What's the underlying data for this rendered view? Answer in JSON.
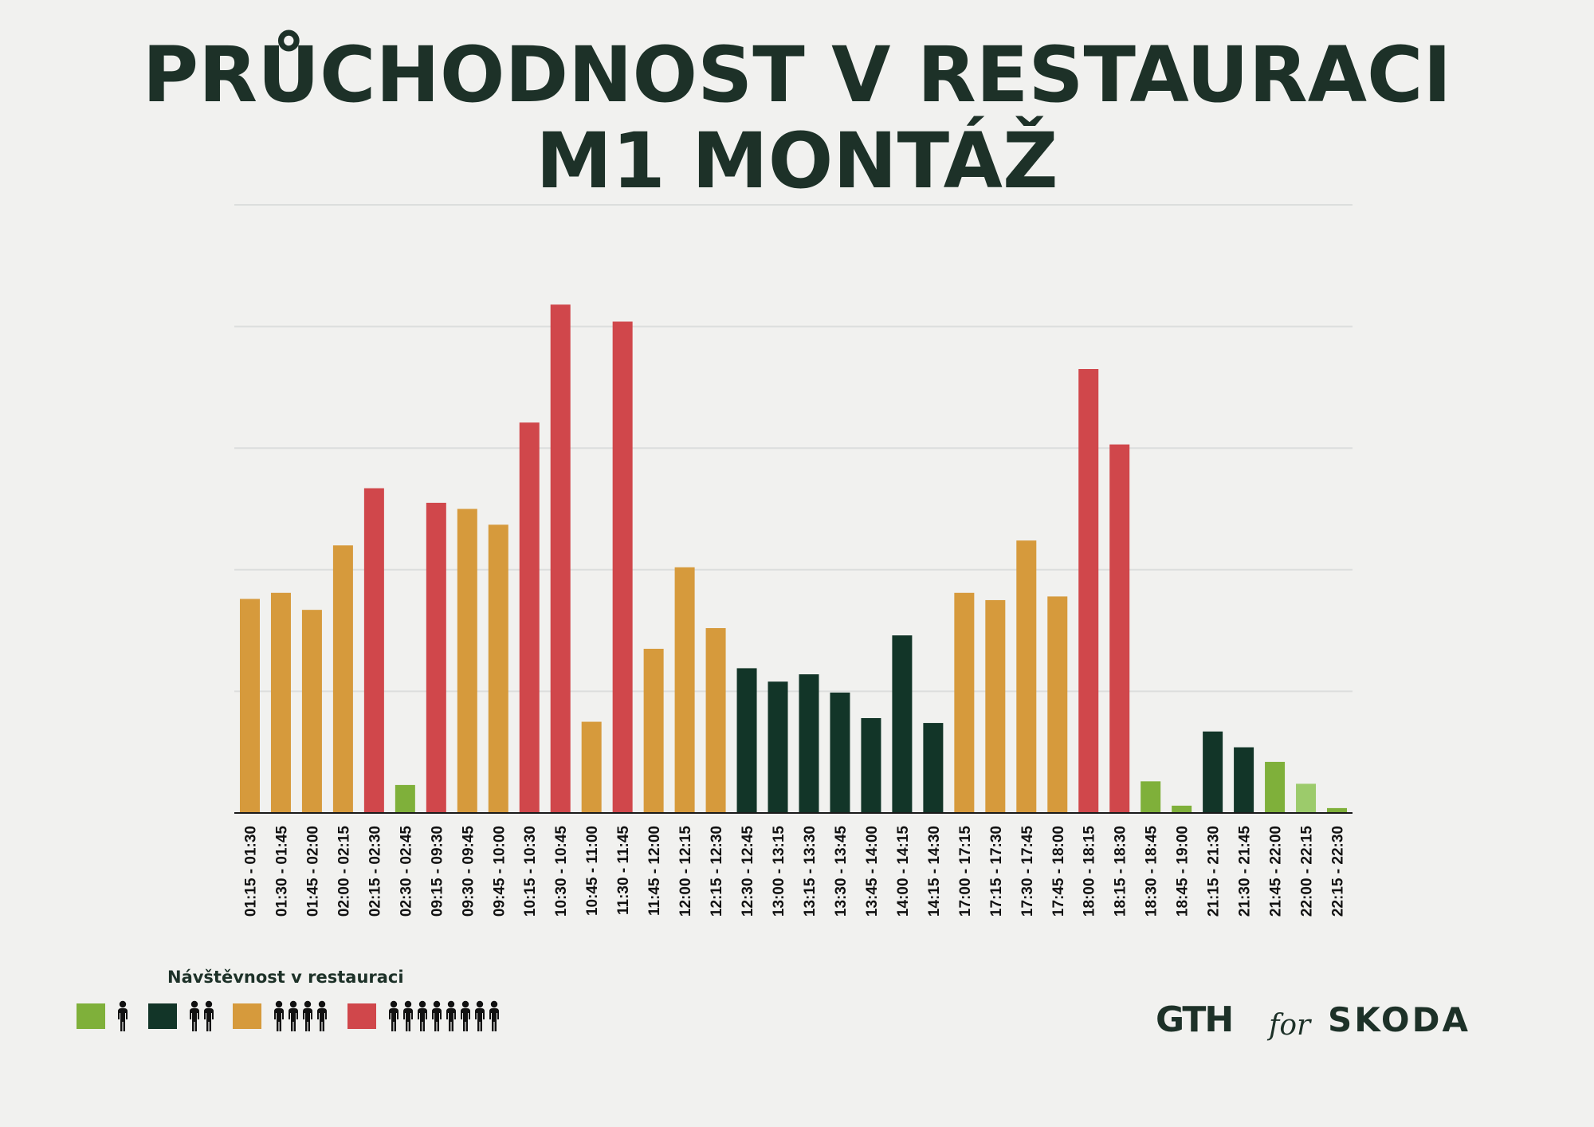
{
  "title": {
    "line1": "PRŮCHODNOST V RESTAURACI",
    "line2": "M1 MONTÁŽ"
  },
  "colors": {
    "background": "#f1f1ef",
    "text": "#1d3128",
    "level1": "#7fb03a",
    "level1_light": "#9ccb6b",
    "level2": "#123528",
    "level3": "#d69a3c",
    "level4": "#d0474b",
    "grid": "#dcdedd",
    "axis": "#1a1a1a"
  },
  "legend": {
    "title": "Návštěvnost v restauraci",
    "items": [
      {
        "level": 1,
        "color": "#7fb03a",
        "people": 1
      },
      {
        "level": 2,
        "color": "#123528",
        "people": 2
      },
      {
        "level": 3,
        "color": "#d69a3c",
        "people": 4
      },
      {
        "level": 4,
        "color": "#d0474b",
        "people": 8
      }
    ]
  },
  "logos": {
    "left": "GTH",
    "middle": "for",
    "right": "SKODA"
  },
  "chart_data": {
    "type": "bar",
    "title": "PRŮCHODNOST V RESTAURACI M1 MONTÁŽ",
    "xlabel": "",
    "ylabel": "",
    "ylim": [
      0,
      5
    ],
    "yticks_labeled": false,
    "grid": true,
    "categories": [
      "01:15 - 01:30",
      "01:30 - 01:45",
      "01:45 - 02:00",
      "02:00 - 02:15",
      "02:15 - 02:30",
      "02:30 - 02:45",
      "09:15 - 09:30",
      "09:30 - 09:45",
      "09:45 - 10:00",
      "10:15 - 10:30",
      "10:30 - 10:45",
      "10:45 - 11:00",
      "11:30 - 11:45",
      "11:45 - 12:00",
      "12:00 - 12:15",
      "12:15 - 12:30",
      "12:30 - 12:45",
      "13:00 - 13:15",
      "13:15 - 13:30",
      "13:30 - 13:45",
      "13:45 - 14:00",
      "14:00 - 14:15",
      "14:15 - 14:30",
      "17:00 - 17:15",
      "17:15 - 17:30",
      "17:30 - 17:45",
      "17:45 - 18:00",
      "18:00 - 18:15",
      "18:15 - 18:30",
      "18:30 - 18:45",
      "18:45 - 19:00",
      "21:15 - 21:30",
      "21:30 - 21:45",
      "21:45 - 22:00",
      "22:00 - 22:15",
      "22:15 - 22:30"
    ],
    "values": [
      1.76,
      1.81,
      1.67,
      2.2,
      2.67,
      0.23,
      2.55,
      2.5,
      2.37,
      3.21,
      4.18,
      0.75,
      4.04,
      1.35,
      2.02,
      1.52,
      1.19,
      1.08,
      1.14,
      0.99,
      0.78,
      1.46,
      0.74,
      1.81,
      1.75,
      2.24,
      1.78,
      3.65,
      3.03,
      0.26,
      0.06,
      0.67,
      0.54,
      0.42,
      0.24,
      0.04
    ],
    "levels": [
      3,
      3,
      3,
      3,
      4,
      1,
      4,
      3,
      3,
      4,
      4,
      3,
      4,
      3,
      3,
      3,
      2,
      2,
      2,
      2,
      2,
      2,
      2,
      3,
      3,
      3,
      3,
      4,
      4,
      1,
      1,
      2,
      2,
      1,
      1,
      1
    ]
  }
}
